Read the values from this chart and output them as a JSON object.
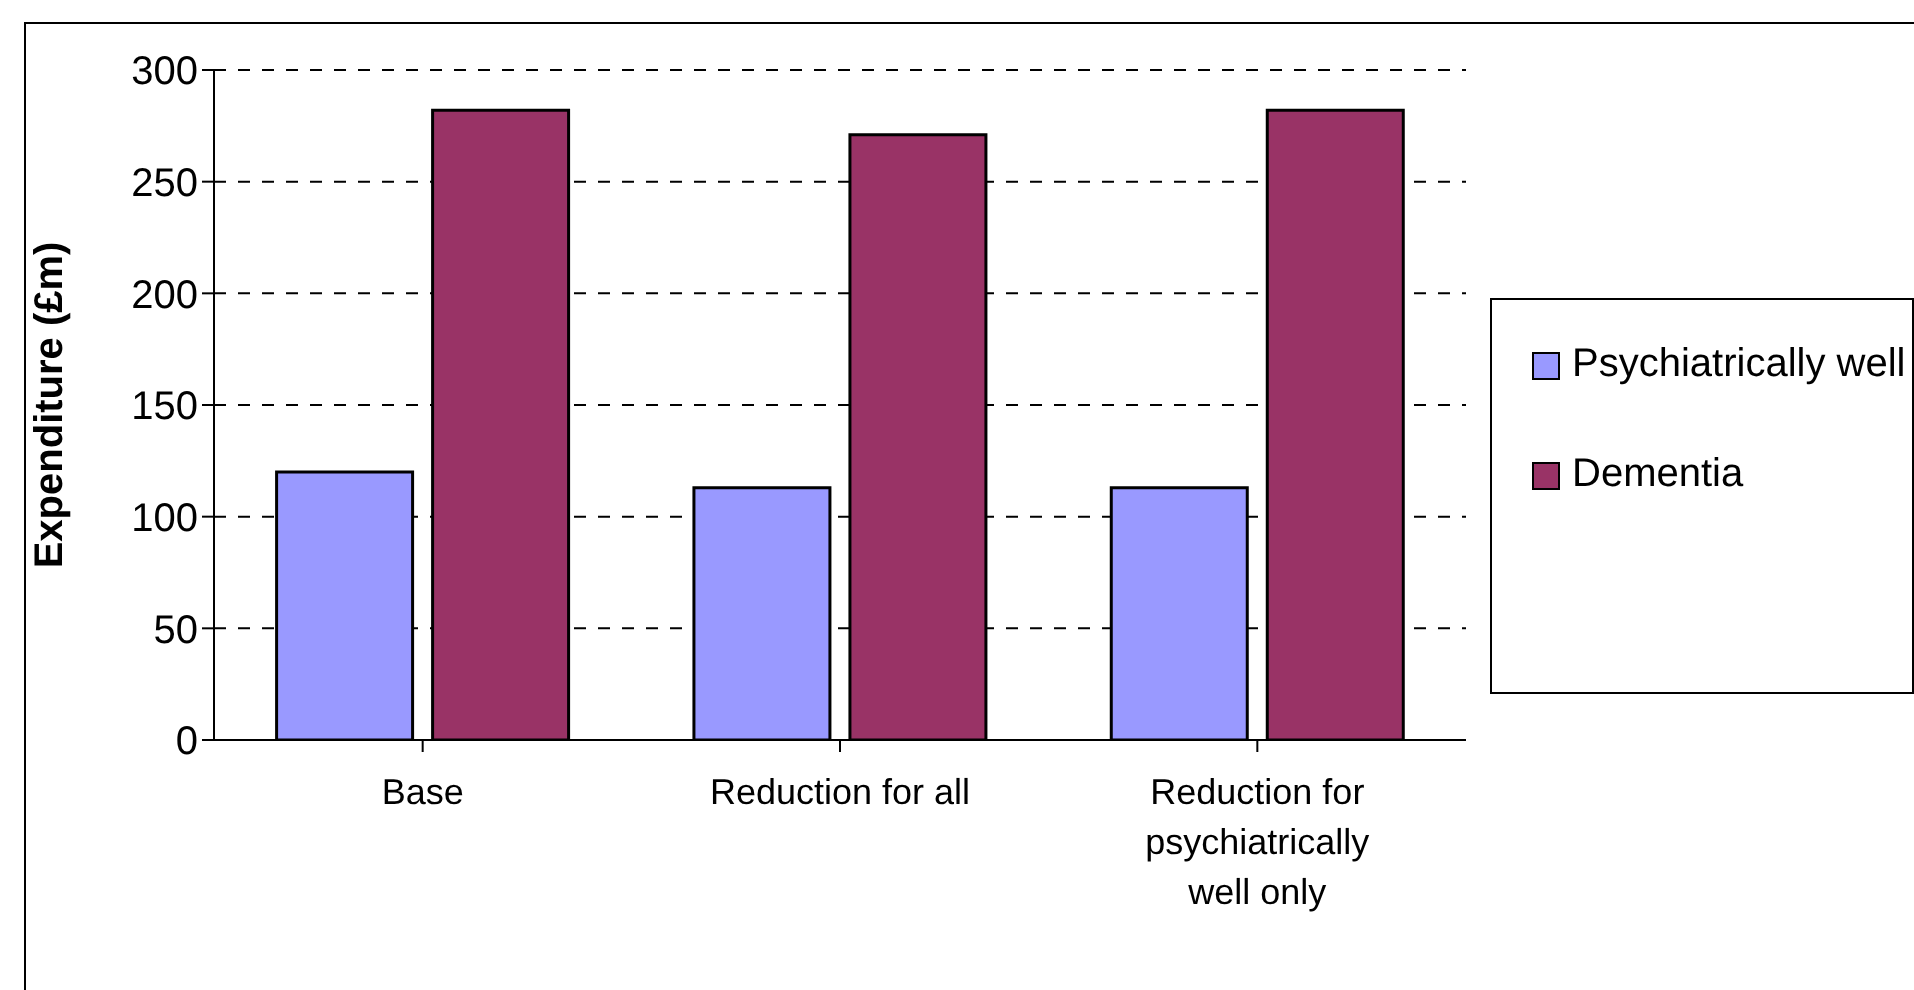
{
  "chart_data": {
    "type": "bar",
    "ylabel": "Expenditure (£m)",
    "categories": [
      "Base",
      "Reduction for all",
      "Reduction for psychiatrically well only"
    ],
    "series": [
      {
        "name": "Psychiatrically well",
        "color": "#9999ff",
        "values": [
          120,
          113,
          113
        ]
      },
      {
        "name": "Dementia",
        "color": "#993366",
        "values": [
          282,
          271,
          282
        ]
      }
    ],
    "ylim": [
      0,
      300
    ],
    "yticks": [
      0,
      50,
      100,
      150,
      200,
      250,
      300
    ],
    "grid": "y",
    "legend": "right"
  }
}
